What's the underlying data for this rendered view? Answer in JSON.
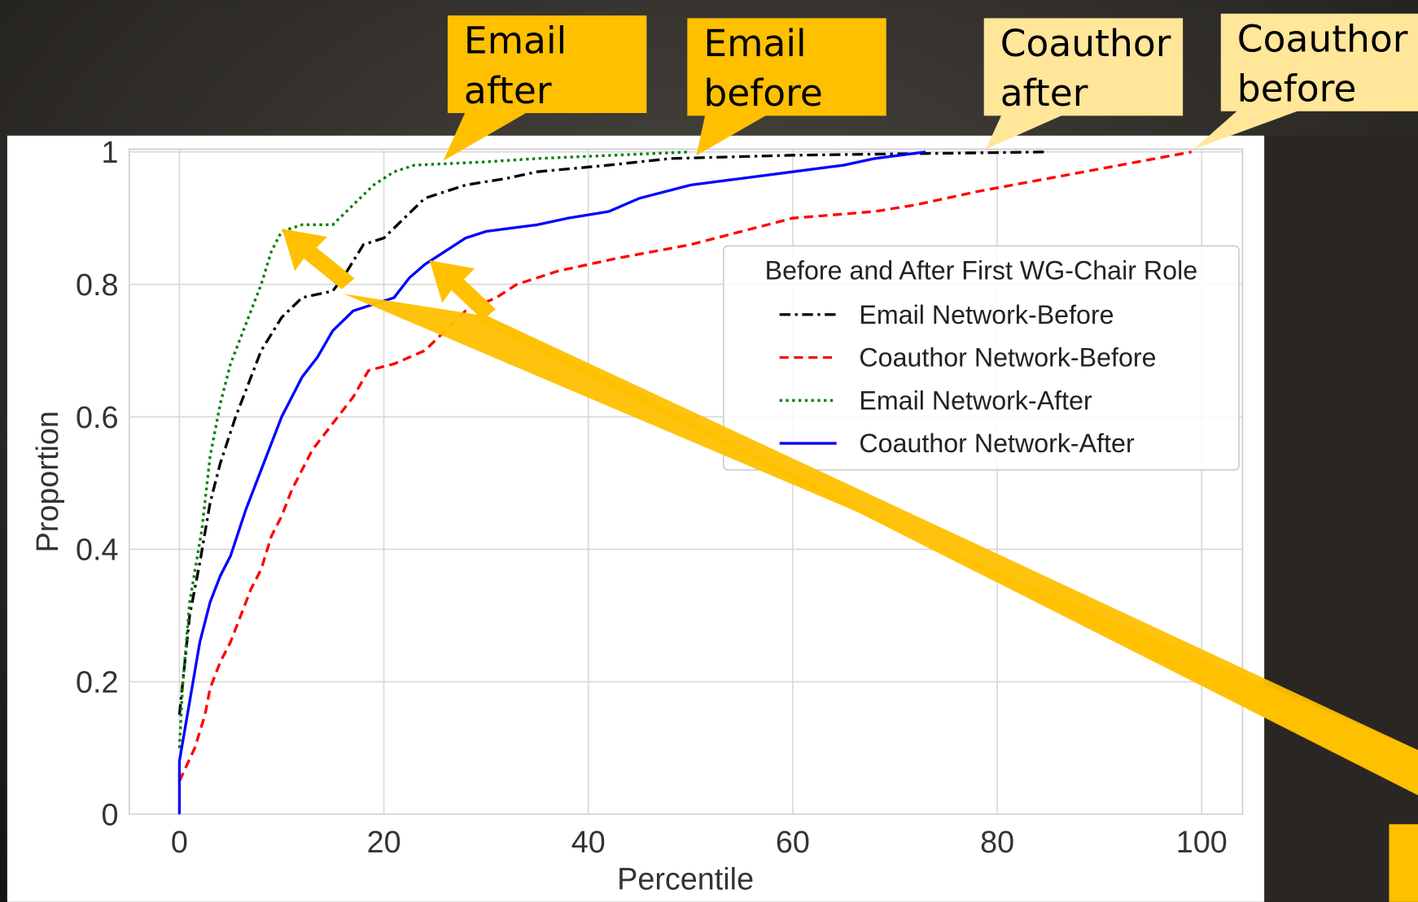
{
  "chart_data": {
    "type": "line",
    "xlabel": "Percentile",
    "ylabel": "Proportion",
    "xlim": [
      -4.9,
      104
    ],
    "ylim": [
      0,
      1
    ],
    "xticks": [
      0,
      20,
      40,
      60,
      80,
      100
    ],
    "yticks": [
      0,
      0.2,
      0.4,
      0.6,
      0.8,
      1
    ],
    "grid": true,
    "legend": {
      "title": "Before and After First WG-Chair Role",
      "loc": "upper right"
    },
    "series": [
      {
        "name": "Email Network-Before",
        "color": "#000000",
        "linestyle": "dashdot",
        "x": [
          0,
          1,
          2,
          3,
          4,
          5.5,
          7,
          8,
          10,
          12,
          15,
          16,
          18,
          20,
          22,
          24,
          28,
          32,
          35,
          42,
          48,
          60,
          85
        ],
        "values": [
          0.15,
          0.3,
          0.38,
          0.47,
          0.53,
          0.6,
          0.66,
          0.7,
          0.75,
          0.78,
          0.79,
          0.81,
          0.86,
          0.87,
          0.9,
          0.93,
          0.95,
          0.96,
          0.97,
          0.98,
          0.99,
          0.995,
          1
        ]
      },
      {
        "name": "Coauthor Network-Before",
        "color": "#ff0000",
        "linestyle": "dashed",
        "x": [
          0,
          1.5,
          2.5,
          3,
          4,
          5,
          6,
          7,
          8,
          9,
          10,
          11,
          12,
          13,
          14,
          15.5,
          17,
          18.5,
          21,
          24,
          26,
          28,
          31,
          33,
          37,
          43,
          50,
          55,
          60,
          68,
          72,
          78,
          85,
          92,
          99
        ],
        "values": [
          0.05,
          0.1,
          0.15,
          0.19,
          0.23,
          0.26,
          0.3,
          0.34,
          0.37,
          0.42,
          0.45,
          0.49,
          0.52,
          0.55,
          0.57,
          0.6,
          0.63,
          0.67,
          0.68,
          0.7,
          0.73,
          0.76,
          0.78,
          0.8,
          0.82,
          0.84,
          0.86,
          0.88,
          0.9,
          0.91,
          0.92,
          0.94,
          0.96,
          0.98,
          1
        ]
      },
      {
        "name": "Email Network-After",
        "color": "#008000",
        "linestyle": "dotted",
        "x": [
          0,
          0.3,
          1,
          2.2,
          3,
          4,
          5,
          7,
          8,
          9,
          10,
          12,
          15,
          17,
          19,
          21,
          23,
          30,
          35,
          50
        ],
        "values": [
          0.1,
          0.19,
          0.32,
          0.43,
          0.54,
          0.62,
          0.68,
          0.76,
          0.8,
          0.85,
          0.88,
          0.89,
          0.89,
          0.92,
          0.95,
          0.97,
          0.98,
          0.985,
          0.99,
          1
        ]
      },
      {
        "name": "Coauthor Network-After",
        "color": "#0000ff",
        "linestyle": "solid",
        "x": [
          0,
          0,
          1,
          2,
          3,
          4,
          5,
          6.5,
          8,
          9,
          10,
          11,
          12,
          13.5,
          15,
          17,
          19,
          21,
          22.5,
          24,
          26,
          28,
          30,
          35,
          38,
          42,
          45,
          50,
          55,
          60,
          65,
          68,
          73
        ],
        "values": [
          0,
          0.08,
          0.17,
          0.26,
          0.32,
          0.36,
          0.39,
          0.46,
          0.52,
          0.56,
          0.6,
          0.63,
          0.66,
          0.69,
          0.73,
          0.76,
          0.77,
          0.78,
          0.81,
          0.83,
          0.85,
          0.87,
          0.88,
          0.89,
          0.9,
          0.91,
          0.93,
          0.95,
          0.96,
          0.97,
          0.98,
          0.99,
          1
        ]
      }
    ],
    "annotations": [
      {
        "lines": [
          "Email",
          "after"
        ]
      },
      {
        "lines": [
          "Email",
          "before"
        ]
      },
      {
        "lines": [
          "Coauthor",
          "after"
        ]
      },
      {
        "lines": [
          "Coauthor",
          "before"
        ]
      }
    ]
  }
}
